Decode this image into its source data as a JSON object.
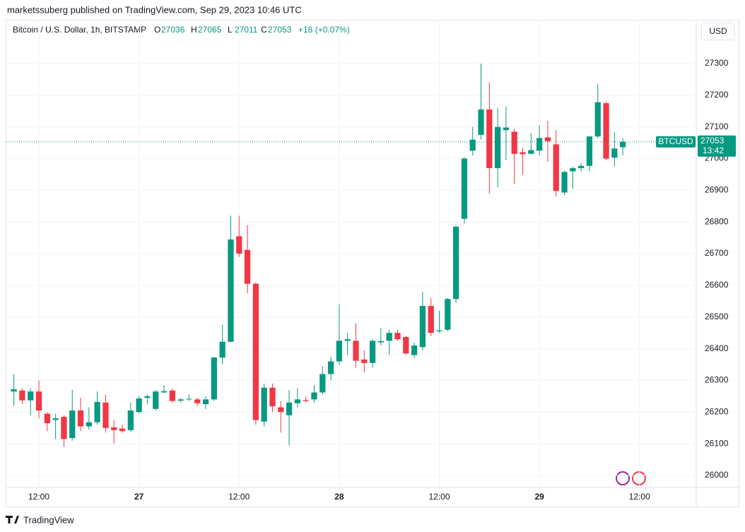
{
  "publisher_line": "marketssuberg published on TradingView.com, Sep 29, 2023 10:46 UTC",
  "currency_button": "USD",
  "footer_brand": "TradingView",
  "chart_data": {
    "type": "candlestick",
    "title": "Bitcoin / U.S. Dollar, 1h, BITSTAMP",
    "ohlc_labels": [
      "O",
      "H",
      "L",
      "C"
    ],
    "change": "+18 (+0.07%)",
    "symbol_label": "BTCUSD",
    "countdown": "13:42",
    "up_color": "#089981",
    "down_color": "#f23645",
    "grid": true,
    "x": [
      9,
      10,
      11,
      12,
      13,
      14,
      15,
      16,
      17,
      18,
      19,
      20,
      21,
      22,
      23,
      24,
      25,
      26,
      27,
      28,
      29,
      30,
      31,
      32,
      33,
      34,
      35,
      36,
      37,
      38,
      39,
      40,
      41,
      42,
      43,
      44,
      45,
      46,
      47,
      48,
      49,
      50,
      51,
      52,
      53,
      54,
      55,
      56,
      57,
      58,
      59,
      60,
      61,
      62,
      63,
      64,
      65,
      66,
      67,
      68,
      69,
      70,
      71,
      72,
      73,
      74,
      75,
      76,
      77,
      78,
      79,
      80,
      81,
      82
    ],
    "open": [
      26265,
      26268,
      26237,
      26265,
      26195,
      26175,
      26185,
      26118,
      26205,
      26155,
      26168,
      26230,
      26152,
      26148,
      26143,
      26200,
      26245,
      26210,
      26262,
      26268,
      26236,
      26240,
      26240,
      26225,
      26240,
      26372,
      26422,
      26755,
      26712,
      26605,
      26170,
      26277,
      26215,
      26190,
      26228,
      26238,
      26240,
      26262,
      26320,
      26360,
      26425,
      26425,
      26366,
      26355,
      26420,
      26425,
      26450,
      26437,
      26380,
      26405,
      26535,
      26455,
      26460,
      26557,
      26810,
      27025,
      27075,
      27155,
      26970,
      27090,
      27085,
      27020,
      27015,
      27025,
      27067,
      27045,
      26893,
      26960,
      26970,
      26977,
      27070,
      27175,
      27003,
      27036
    ],
    "high": [
      26320,
      26275,
      26275,
      26300,
      26200,
      26195,
      26190,
      26270,
      26245,
      26215,
      26265,
      26255,
      26175,
      26160,
      26230,
      26250,
      26255,
      26270,
      26285,
      26275,
      26245,
      26255,
      26245,
      26250,
      26375,
      26475,
      26820,
      26820,
      26790,
      26610,
      26290,
      26290,
      26235,
      26270,
      26275,
      26250,
      26285,
      26345,
      26375,
      26540,
      26450,
      26480,
      26395,
      26430,
      26465,
      26460,
      26460,
      26440,
      26420,
      26580,
      26560,
      26520,
      26560,
      26790,
      27005,
      27100,
      27300,
      27240,
      27160,
      27165,
      27095,
      27035,
      27080,
      27105,
      27120,
      27090,
      26962,
      26975,
      26985,
      27070,
      27235,
      27180,
      27085,
      27065
    ],
    "low": [
      26220,
      26225,
      26190,
      26180,
      26140,
      26115,
      26090,
      26110,
      26140,
      26145,
      26160,
      26135,
      26100,
      26135,
      26138,
      26195,
      26225,
      26205,
      26260,
      26230,
      26230,
      26235,
      26220,
      26210,
      26235,
      26350,
      26420,
      26690,
      26575,
      26160,
      26155,
      26200,
      26135,
      26095,
      26215,
      26230,
      26230,
      26255,
      26300,
      26350,
      26380,
      26340,
      26325,
      26340,
      26410,
      26380,
      26425,
      26380,
      26370,
      26395,
      26440,
      26450,
      26455,
      26545,
      26795,
      27010,
      27060,
      26890,
      26910,
      26995,
      26920,
      26950,
      27015,
      27010,
      26990,
      26880,
      26885,
      26905,
      26960,
      26960,
      27065,
      26995,
      26975,
      27011
    ],
    "close": [
      26272,
      26237,
      26265,
      26205,
      26165,
      26180,
      26115,
      26205,
      26155,
      26168,
      26232,
      26150,
      26143,
      26140,
      26205,
      26243,
      26250,
      26265,
      26266,
      26235,
      26240,
      26242,
      26228,
      26240,
      26372,
      26422,
      26745,
      26700,
      26605,
      26175,
      26277,
      26218,
      26200,
      26230,
      26240,
      26235,
      26262,
      26320,
      26360,
      26425,
      26430,
      26362,
      26355,
      26425,
      26424,
      26450,
      26430,
      26385,
      26410,
      26535,
      26450,
      26458,
      26557,
      26785,
      27000,
      27060,
      27155,
      26970,
      27100,
      27098,
      27015,
      27014,
      27027,
      27065,
      27055,
      26898,
      26958,
      26970,
      26977,
      27070,
      27178,
      27000,
      27032,
      27053
    ],
    "xlim": [
      8.1,
      90.8
    ],
    "ylim": [
      25962,
      27436
    ],
    "yticks": [
      26000,
      26100,
      26200,
      26300,
      26400,
      26500,
      26600,
      26700,
      26800,
      26900,
      27000,
      27100,
      27200,
      27300
    ],
    "xticks": [
      {
        "value": 12,
        "label": "12:00"
      },
      {
        "value": 24,
        "label": "27"
      },
      {
        "value": 36,
        "label": "12:00"
      },
      {
        "value": 48,
        "label": "28"
      },
      {
        "value": 60,
        "label": "12:00"
      },
      {
        "value": 72,
        "label": "29"
      },
      {
        "value": 84,
        "label": "12:00"
      }
    ]
  }
}
